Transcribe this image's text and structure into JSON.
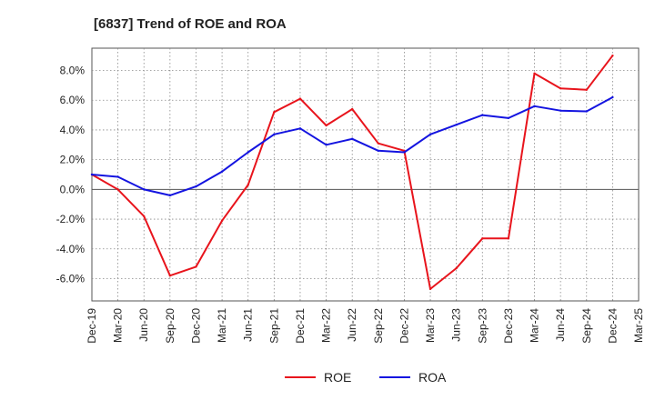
{
  "chart_data": {
    "type": "line",
    "title": "[6837]  Trend of ROE and ROA",
    "xlabel": "",
    "ylabel": "",
    "categories": [
      "Dec-19",
      "Mar-20",
      "Jun-20",
      "Sep-20",
      "Dec-20",
      "Mar-21",
      "Jun-21",
      "Sep-21",
      "Dec-21",
      "Mar-22",
      "Jun-22",
      "Sep-22",
      "Dec-22",
      "Mar-23",
      "Jun-23",
      "Sep-23",
      "Dec-23",
      "Mar-24",
      "Jun-24",
      "Sep-24",
      "Dec-24",
      "Mar-25"
    ],
    "ylim": [
      -7.5,
      9.5
    ],
    "yticks": [
      -6.0,
      -4.0,
      -2.0,
      0.0,
      2.0,
      4.0,
      6.0,
      8.0
    ],
    "ytick_labels": [
      "-6.0%",
      "-4.0%",
      "-2.0%",
      "0.0%",
      "2.0%",
      "4.0%",
      "6.0%",
      "8.0%"
    ],
    "grid": true,
    "legend_position": "bottom",
    "series": [
      {
        "name": "ROE",
        "color": "#e8141c",
        "values": [
          1.0,
          0.0,
          -1.8,
          -5.8,
          -5.2,
          -2.1,
          0.3,
          5.2,
          6.1,
          4.3,
          5.4,
          3.1,
          2.6,
          -6.7,
          -5.3,
          -3.3,
          -3.3,
          7.8,
          6.8,
          6.7,
          9.0,
          null
        ]
      },
      {
        "name": "ROA",
        "color": "#1414e0",
        "values": [
          1.0,
          0.85,
          0.0,
          -0.4,
          0.2,
          1.2,
          2.5,
          3.7,
          4.1,
          3.0,
          3.4,
          2.6,
          2.5,
          3.7,
          4.35,
          5.0,
          4.8,
          5.6,
          5.3,
          5.25,
          6.2,
          null
        ]
      }
    ]
  }
}
